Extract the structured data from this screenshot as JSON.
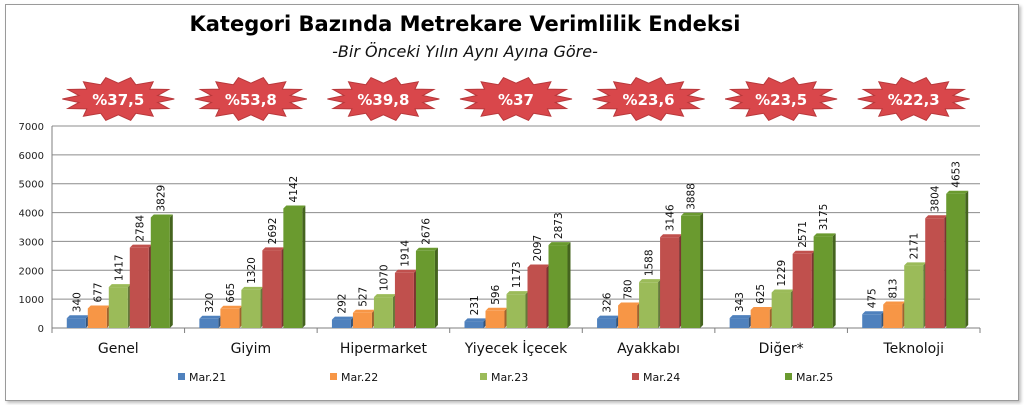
{
  "chart_data": {
    "type": "bar",
    "title": "Kategori Bazında Metrekare Verimlilik Endeksi",
    "subtitle": "-Bir Önceki Yılın Aynı Ayına Göre-",
    "categories": [
      "Genel",
      "Giyim",
      "Hipermarket",
      "Yiyecek İçecek",
      "Ayakkabı",
      "Diğer*",
      "Teknoloji"
    ],
    "series": [
      {
        "name": "Mar.21",
        "color": "#4f81bd",
        "values": [
          340,
          320,
          292,
          231,
          326,
          343,
          475
        ]
      },
      {
        "name": "Mar.22",
        "color": "#f79646",
        "values": [
          677,
          665,
          527,
          596,
          780,
          625,
          813
        ]
      },
      {
        "name": "Mar.23",
        "color": "#9bbb59",
        "values": [
          1417,
          1320,
          1070,
          1173,
          1588,
          1229,
          2171
        ]
      },
      {
        "name": "Mar.24",
        "color": "#c0504d",
        "values": [
          2784,
          2692,
          1914,
          2097,
          3146,
          2571,
          3804
        ]
      },
      {
        "name": "Mar.25",
        "color": "#6a9a2f",
        "values": [
          3829,
          4142,
          2676,
          2873,
          3888,
          3175,
          4653
        ]
      }
    ],
    "badges": [
      "%37,5",
      "%53,8",
      "%39,8",
      "%37",
      "%23,6",
      "%23,5",
      "%22,3"
    ],
    "badge_color": "#d9474b",
    "ylim": [
      0,
      7000
    ],
    "yticks": [
      0,
      1000,
      2000,
      3000,
      4000,
      5000,
      6000,
      7000
    ],
    "grid": true,
    "legend": "bottom"
  }
}
